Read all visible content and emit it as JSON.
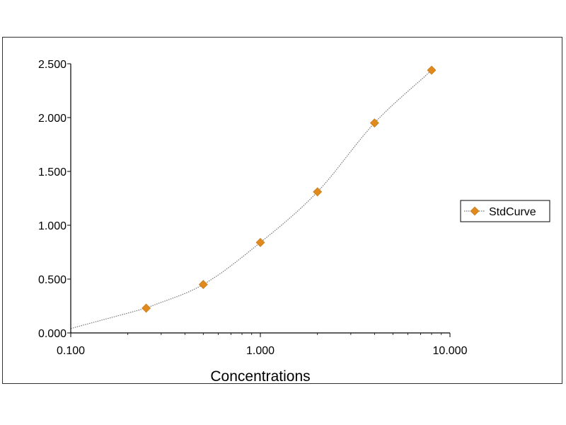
{
  "chart_data": {
    "type": "scatter",
    "title": "",
    "xlabel": "Concentrations",
    "ylabel": "",
    "x_scale": "log",
    "xlim": [
      0.1,
      10
    ],
    "ylim": [
      0,
      2.5
    ],
    "x_ticks": [
      {
        "value": 0.1,
        "label": "0.100"
      },
      {
        "value": 1,
        "label": "1.000"
      },
      {
        "value": 10,
        "label": "10.000"
      }
    ],
    "y_ticks": [
      {
        "value": 0,
        "label": "0.000"
      },
      {
        "value": 0.5,
        "label": "0.500"
      },
      {
        "value": 1,
        "label": "1.000"
      },
      {
        "value": 1.5,
        "label": "1.500"
      },
      {
        "value": 2,
        "label": "2.000"
      },
      {
        "value": 2.5,
        "label": "2.500"
      }
    ],
    "grid": false,
    "legend_position": "right",
    "series": [
      {
        "name": "StdCurve",
        "color": "#E08A1E",
        "marker": "diamond",
        "fit_line": "dotted",
        "x": [
          0.25,
          0.5,
          1,
          2,
          4,
          8
        ],
        "y": [
          0.23,
          0.45,
          0.84,
          1.31,
          1.95,
          2.44
        ]
      }
    ]
  }
}
